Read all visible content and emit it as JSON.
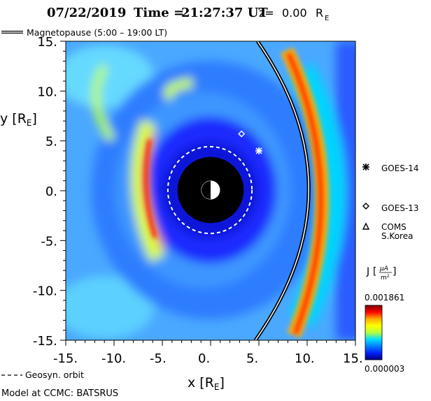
{
  "title": {
    "date": "07/22/2019",
    "time_label": "Time =",
    "time": "21:27:37 UT",
    "z_label": "z=",
    "z_value": "0.00",
    "z_unit": "R",
    "z_unit_sub": "E"
  },
  "legend": {
    "magnetopause": "Magnetopause (5:00 – 19:00 LT)",
    "geosyn": "Geosyn. orbit",
    "model": "Model at CCMC: BATSRUS"
  },
  "satellites": [
    {
      "name": "GOES-14",
      "marker": "star",
      "x": 5.0,
      "y": 4.0
    },
    {
      "name": "GOES-13",
      "marker": "diamond",
      "x": 3.2,
      "y": 5.7
    },
    {
      "name": "COMS S.Korea",
      "marker": "triangle",
      "x": null,
      "y": null
    }
  ],
  "colorbar": {
    "label": "J",
    "unit_num": "μA",
    "unit_den": "m2",
    "max_label": "0.001861",
    "min_label": "0.000003",
    "colors": [
      "#7a0000",
      "#ff0000",
      "#ffaa00",
      "#ffff00",
      "#b4ff3c",
      "#00e0ff",
      "#0080ff",
      "#0020ff",
      "#00007a"
    ]
  },
  "chart_data": {
    "type": "heatmap",
    "title": "07/22/2019 Time = 21:27:37 UT z= 0.00RE",
    "xlabel": "x [RE]",
    "ylabel": "y [RE]",
    "xlim": [
      -15,
      15
    ],
    "ylim": [
      -15,
      15
    ],
    "x_ticks": [
      "-15.",
      "-10.",
      "-5.",
      "0.",
      "5.",
      "10.",
      "15."
    ],
    "y_ticks": [
      "15.",
      "10.",
      "5.",
      "0.",
      "-5.",
      "-10.",
      "-15."
    ],
    "x_tick_values": [
      -15,
      -10,
      -5,
      0,
      5,
      10,
      15
    ],
    "y_tick_values": [
      15,
      10,
      5,
      0,
      -5,
      -10,
      -15
    ],
    "earth_radius_re": 1,
    "inner_boundary_re": 3.5,
    "geosync_orbit_re": 6.6,
    "colorbar_range": [
      3e-06,
      0.001861
    ],
    "colorbar_unit": "μA/m²"
  }
}
